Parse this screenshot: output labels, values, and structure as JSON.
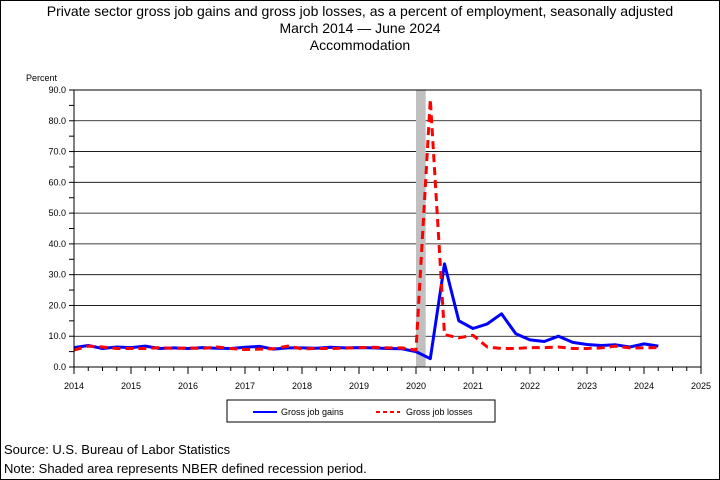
{
  "chart_data": {
    "type": "line",
    "title": "Private sector gross job gains and gross job losses, as a percent of employment, seasonally adjusted",
    "subtitle": "March 2014 — June 2024",
    "subtitle2": "Accommodation",
    "ylabel": "Percent",
    "ylim": [
      0,
      90
    ],
    "yticks": [
      "0.0",
      "10.0",
      "20.0",
      "30.0",
      "40.0",
      "50.0",
      "60.0",
      "70.0",
      "80.0",
      "90.0"
    ],
    "xlim": [
      2014,
      2025
    ],
    "xticks": [
      "2014",
      "2015",
      "2016",
      "2017",
      "2018",
      "2019",
      "2020",
      "2021",
      "2022",
      "2023",
      "2024",
      "2025"
    ],
    "grid": true,
    "legend_position": "bottom",
    "recession": {
      "start": 2020.0,
      "end": 2020.17,
      "color": "#c0c0c0"
    },
    "series": [
      {
        "name": "Gross job gains",
        "color": "#0000ff",
        "style": "solid",
        "x": [
          2014.0,
          2014.25,
          2014.5,
          2014.75,
          2015.0,
          2015.25,
          2015.5,
          2015.75,
          2016.0,
          2016.25,
          2016.5,
          2016.75,
          2017.0,
          2017.25,
          2017.5,
          2017.75,
          2018.0,
          2018.25,
          2018.5,
          2018.75,
          2019.0,
          2019.25,
          2019.5,
          2019.75,
          2020.0,
          2020.25,
          2020.5,
          2020.75,
          2021.0,
          2021.25,
          2021.5,
          2021.75,
          2022.0,
          2022.25,
          2022.5,
          2022.75,
          2023.0,
          2023.25,
          2023.5,
          2023.75,
          2024.0,
          2024.25
        ],
        "values": [
          6.3,
          7.0,
          6.0,
          6.5,
          6.3,
          6.8,
          6.0,
          6.2,
          6.0,
          6.3,
          6.1,
          6.0,
          6.4,
          6.7,
          5.8,
          6.2,
          6.2,
          6.1,
          6.4,
          6.2,
          6.3,
          6.2,
          6.0,
          5.9,
          5.0,
          2.7,
          33.5,
          15.0,
          12.5,
          14.0,
          17.3,
          10.8,
          8.8,
          8.3,
          10.0,
          8.0,
          7.3,
          7.0,
          7.2,
          6.5,
          7.5,
          6.8
        ]
      },
      {
        "name": "Gross job losses",
        "color": "#ff0000",
        "style": "dashed",
        "x": [
          2014.0,
          2014.25,
          2014.5,
          2014.75,
          2015.0,
          2015.25,
          2015.5,
          2015.75,
          2016.0,
          2016.25,
          2016.5,
          2016.75,
          2017.0,
          2017.25,
          2017.5,
          2017.75,
          2018.0,
          2018.25,
          2018.5,
          2018.75,
          2019.0,
          2019.25,
          2019.5,
          2019.75,
          2020.0,
          2020.25,
          2020.5,
          2020.75,
          2021.0,
          2021.25,
          2021.5,
          2021.75,
          2022.0,
          2022.25,
          2022.5,
          2022.75,
          2023.0,
          2023.25,
          2023.5,
          2023.75,
          2024.0,
          2024.25
        ],
        "values": [
          5.5,
          6.8,
          6.5,
          6.0,
          6.0,
          6.0,
          6.3,
          6.0,
          6.2,
          6.0,
          6.5,
          6.0,
          5.7,
          5.8,
          5.9,
          6.8,
          5.9,
          6.0,
          6.0,
          6.1,
          6.3,
          6.4,
          6.2,
          6.2,
          5.5,
          87.0,
          10.5,
          9.5,
          10.3,
          6.5,
          6.0,
          6.0,
          6.3,
          6.3,
          6.5,
          6.0,
          6.0,
          6.2,
          6.8,
          6.2,
          6.2,
          6.3
        ]
      }
    ]
  },
  "footer": {
    "source": "Source: U.S. Bureau of Labor Statistics",
    "note": "Note: Shaded area represents NBER defined recession period."
  }
}
